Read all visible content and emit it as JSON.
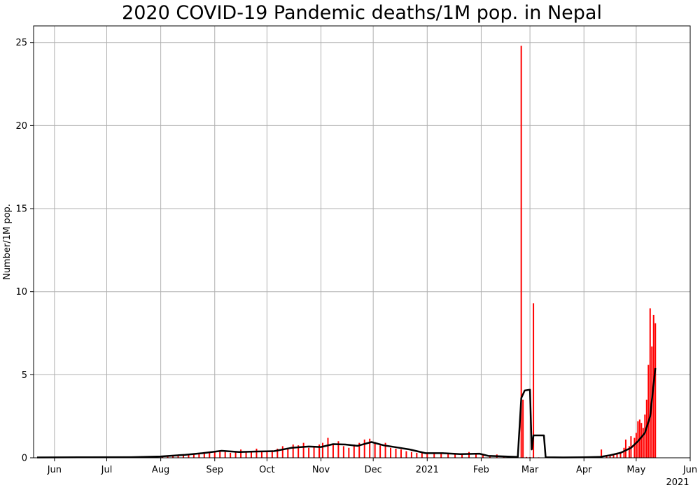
{
  "chart_data": {
    "type": "bar",
    "title": "2020 COVID-19 Pandemic deaths/1M pop. in Nepal",
    "xlabel": "",
    "ylabel": "Number/1M pop.",
    "ylim": [
      0,
      26
    ],
    "xlim": [
      "2020-05-20",
      "2021-06-01"
    ],
    "grid": true,
    "x_ticks": [
      {
        "date": "2020-06-01",
        "label": "Jun"
      },
      {
        "date": "2020-07-01",
        "label": "Jul"
      },
      {
        "date": "2020-08-01",
        "label": "Aug"
      },
      {
        "date": "2020-09-01",
        "label": "Sep"
      },
      {
        "date": "2020-10-01",
        "label": "Oct"
      },
      {
        "date": "2020-11-01",
        "label": "Nov"
      },
      {
        "date": "2020-12-01",
        "label": "Dec"
      },
      {
        "date": "2021-01-01",
        "label": "2021"
      },
      {
        "date": "2021-02-01",
        "label": "Feb"
      },
      {
        "date": "2021-03-01",
        "label": "Mar"
      },
      {
        "date": "2021-04-01",
        "label": "Apr"
      },
      {
        "date": "2021-05-01",
        "label": "May"
      },
      {
        "date": "2021-06-01",
        "label": "Jun"
      }
    ],
    "x_year_label": "2021",
    "y_ticks": [
      0,
      5,
      10,
      15,
      20,
      25
    ],
    "colors": {
      "bars": "#ff0000",
      "line": "#000000",
      "grid": "#b0b0b0"
    },
    "series": [
      {
        "type": "bar",
        "values": [
          [
            "2020-05-25",
            0.02
          ],
          [
            "2020-06-01",
            0.02
          ],
          [
            "2020-06-08",
            0.03
          ],
          [
            "2020-06-15",
            0.03
          ],
          [
            "2020-06-22",
            0.04
          ],
          [
            "2020-06-29",
            0.04
          ],
          [
            "2020-07-06",
            0.04
          ],
          [
            "2020-07-13",
            0.05
          ],
          [
            "2020-07-20",
            0.05
          ],
          [
            "2020-07-27",
            0.08
          ],
          [
            "2020-08-02",
            0.1
          ],
          [
            "2020-08-05",
            0.12
          ],
          [
            "2020-08-08",
            0.15
          ],
          [
            "2020-08-11",
            0.1
          ],
          [
            "2020-08-14",
            0.18
          ],
          [
            "2020-08-17",
            0.2
          ],
          [
            "2020-08-20",
            0.25
          ],
          [
            "2020-08-23",
            0.22
          ],
          [
            "2020-08-26",
            0.3
          ],
          [
            "2020-08-29",
            0.35
          ],
          [
            "2020-09-01",
            0.4
          ],
          [
            "2020-09-04",
            0.45
          ],
          [
            "2020-09-07",
            0.35
          ],
          [
            "2020-09-10",
            0.3
          ],
          [
            "2020-09-13",
            0.4
          ],
          [
            "2020-09-16",
            0.5
          ],
          [
            "2020-09-19",
            0.35
          ],
          [
            "2020-09-22",
            0.4
          ],
          [
            "2020-09-25",
            0.55
          ],
          [
            "2020-09-28",
            0.35
          ],
          [
            "2020-10-01",
            0.4
          ],
          [
            "2020-10-04",
            0.45
          ],
          [
            "2020-10-07",
            0.55
          ],
          [
            "2020-10-10",
            0.7
          ],
          [
            "2020-10-13",
            0.6
          ],
          [
            "2020-10-16",
            0.8
          ],
          [
            "2020-10-19",
            0.75
          ],
          [
            "2020-10-22",
            0.9
          ],
          [
            "2020-10-25",
            0.6
          ],
          [
            "2020-10-28",
            0.7
          ],
          [
            "2020-10-31",
            0.8
          ],
          [
            "2020-11-02",
            0.9
          ],
          [
            "2020-11-05",
            1.2
          ],
          [
            "2020-11-08",
            0.85
          ],
          [
            "2020-11-11",
            1.0
          ],
          [
            "2020-11-14",
            0.7
          ],
          [
            "2020-11-17",
            0.6
          ],
          [
            "2020-11-20",
            0.8
          ],
          [
            "2020-11-23",
            0.9
          ],
          [
            "2020-11-26",
            1.1
          ],
          [
            "2020-11-29",
            1.15
          ],
          [
            "2020-12-02",
            0.95
          ],
          [
            "2020-12-05",
            0.75
          ],
          [
            "2020-12-08",
            0.9
          ],
          [
            "2020-12-11",
            0.6
          ],
          [
            "2020-12-14",
            0.55
          ],
          [
            "2020-12-17",
            0.5
          ],
          [
            "2020-12-20",
            0.4
          ],
          [
            "2020-12-23",
            0.35
          ],
          [
            "2020-12-26",
            0.3
          ],
          [
            "2020-12-29",
            0.28
          ],
          [
            "2021-01-01",
            0.3
          ],
          [
            "2021-01-05",
            0.25
          ],
          [
            "2021-01-09",
            0.3
          ],
          [
            "2021-01-13",
            0.25
          ],
          [
            "2021-01-17",
            0.2
          ],
          [
            "2021-01-21",
            0.25
          ],
          [
            "2021-01-25",
            0.35
          ],
          [
            "2021-01-29",
            0.2
          ],
          [
            "2021-02-02",
            0.15
          ],
          [
            "2021-02-06",
            0.1
          ],
          [
            "2021-02-10",
            0.2
          ],
          [
            "2021-02-14",
            0.08
          ],
          [
            "2021-02-18",
            0.05
          ],
          [
            "2021-02-22",
            0.03
          ],
          [
            "2021-02-24",
            24.8
          ],
          [
            "2021-02-25",
            3.5
          ],
          [
            "2021-02-27",
            0.05
          ],
          [
            "2021-03-01",
            0.04
          ],
          [
            "2021-03-03",
            9.3
          ],
          [
            "2021-03-06",
            0.03
          ],
          [
            "2021-03-10",
            0.03
          ],
          [
            "2021-03-14",
            0.02
          ],
          [
            "2021-03-18",
            0.02
          ],
          [
            "2021-03-22",
            0.03
          ],
          [
            "2021-03-26",
            0.02
          ],
          [
            "2021-03-30",
            0.03
          ],
          [
            "2021-04-03",
            0.04
          ],
          [
            "2021-04-07",
            0.05
          ],
          [
            "2021-04-11",
            0.5
          ],
          [
            "2021-04-14",
            0.1
          ],
          [
            "2021-04-16",
            0.15
          ],
          [
            "2021-04-18",
            0.2
          ],
          [
            "2021-04-20",
            0.3
          ],
          [
            "2021-04-22",
            0.35
          ],
          [
            "2021-04-24",
            0.6
          ],
          [
            "2021-04-25",
            1.1
          ],
          [
            "2021-04-27",
            0.7
          ],
          [
            "2021-04-28",
            1.3
          ],
          [
            "2021-04-30",
            1.2
          ],
          [
            "2021-05-01",
            1.5
          ],
          [
            "2021-05-02",
            2.2
          ],
          [
            "2021-05-03",
            2.3
          ],
          [
            "2021-05-04",
            2.1
          ],
          [
            "2021-05-05",
            1.8
          ],
          [
            "2021-05-06",
            2.6
          ],
          [
            "2021-05-07",
            3.5
          ],
          [
            "2021-05-08",
            5.6
          ],
          [
            "2021-05-09",
            9.0
          ],
          [
            "2021-05-10",
            6.7
          ],
          [
            "2021-05-11",
            8.6
          ],
          [
            "2021-05-12",
            8.1
          ]
        ]
      },
      {
        "type": "line",
        "values": [
          [
            "2020-05-22",
            0.02
          ],
          [
            "2020-06-15",
            0.03
          ],
          [
            "2020-07-15",
            0.04
          ],
          [
            "2020-08-01",
            0.08
          ],
          [
            "2020-08-15",
            0.18
          ],
          [
            "2020-08-25",
            0.28
          ],
          [
            "2020-09-05",
            0.42
          ],
          [
            "2020-09-15",
            0.35
          ],
          [
            "2020-09-25",
            0.38
          ],
          [
            "2020-10-05",
            0.4
          ],
          [
            "2020-10-15",
            0.6
          ],
          [
            "2020-10-25",
            0.68
          ],
          [
            "2020-11-01",
            0.65
          ],
          [
            "2020-11-08",
            0.82
          ],
          [
            "2020-11-15",
            0.8
          ],
          [
            "2020-11-22",
            0.72
          ],
          [
            "2020-11-30",
            0.95
          ],
          [
            "2020-12-07",
            0.75
          ],
          [
            "2020-12-15",
            0.62
          ],
          [
            "2020-12-22",
            0.5
          ],
          [
            "2020-12-31",
            0.28
          ],
          [
            "2021-01-10",
            0.28
          ],
          [
            "2021-01-20",
            0.22
          ],
          [
            "2021-01-31",
            0.25
          ],
          [
            "2021-02-05",
            0.12
          ],
          [
            "2021-02-15",
            0.08
          ],
          [
            "2021-02-22",
            0.05
          ],
          [
            "2021-02-24",
            3.6
          ],
          [
            "2021-02-26",
            4.05
          ],
          [
            "2021-03-01",
            4.1
          ],
          [
            "2021-03-02",
            0.5
          ],
          [
            "2021-03-03",
            1.35
          ],
          [
            "2021-03-09",
            1.35
          ],
          [
            "2021-03-10",
            0.03
          ],
          [
            "2021-03-20",
            0.02
          ],
          [
            "2021-04-01",
            0.03
          ],
          [
            "2021-04-10",
            0.05
          ],
          [
            "2021-04-16",
            0.15
          ],
          [
            "2021-04-22",
            0.3
          ],
          [
            "2021-04-28",
            0.6
          ],
          [
            "2021-05-02",
            1.0
          ],
          [
            "2021-05-06",
            1.5
          ],
          [
            "2021-05-09",
            2.5
          ],
          [
            "2021-05-12",
            5.4
          ]
        ]
      }
    ]
  }
}
